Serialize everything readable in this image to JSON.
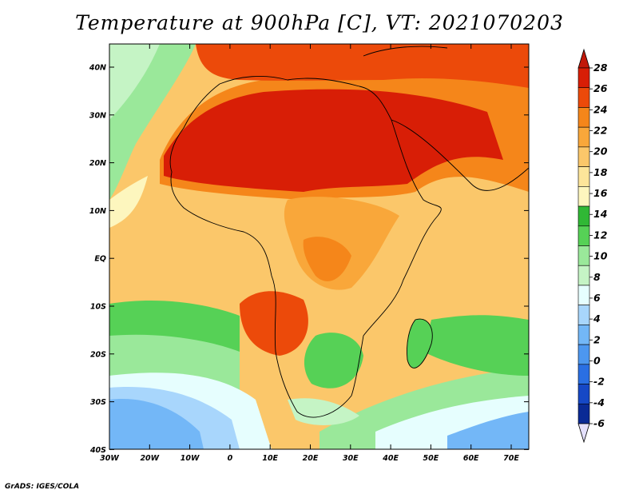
{
  "title": "Temperature at 900hPa [C], VT: 2021070203",
  "credit": "GrADS: IGES/COLA",
  "map": {
    "lat_labels": [
      "40N",
      "30N",
      "20N",
      "10N",
      "EQ",
      "10S",
      "20S",
      "30S",
      "40S"
    ],
    "lon_labels": [
      "30W",
      "20W",
      "10W",
      "0",
      "10E",
      "20E",
      "30E",
      "40E",
      "50E",
      "60E",
      "70E"
    ]
  },
  "colorbar": {
    "labels": [
      "28",
      "26",
      "24",
      "22",
      "20",
      "18",
      "16",
      "14",
      "12",
      "10",
      "8",
      "6",
      "4",
      "2",
      "0",
      "-2",
      "-4",
      "-6"
    ],
    "colors": [
      "#d81e06",
      "#ec4a0a",
      "#f5861a",
      "#f9a73a",
      "#fbc76a",
      "#fde59a",
      "#fdf6be",
      "#30b835",
      "#56d156",
      "#9ae89a",
      "#c5f4c5",
      "#e6fefe",
      "#a8d6fc",
      "#73b7f7",
      "#4d97ef",
      "#2a6fe3",
      "#1648c6",
      "#0a2a95",
      "#062072"
    ],
    "top_triangle_color": "#c1180a",
    "bottom_triangle_color": "#e4e0fc"
  }
}
